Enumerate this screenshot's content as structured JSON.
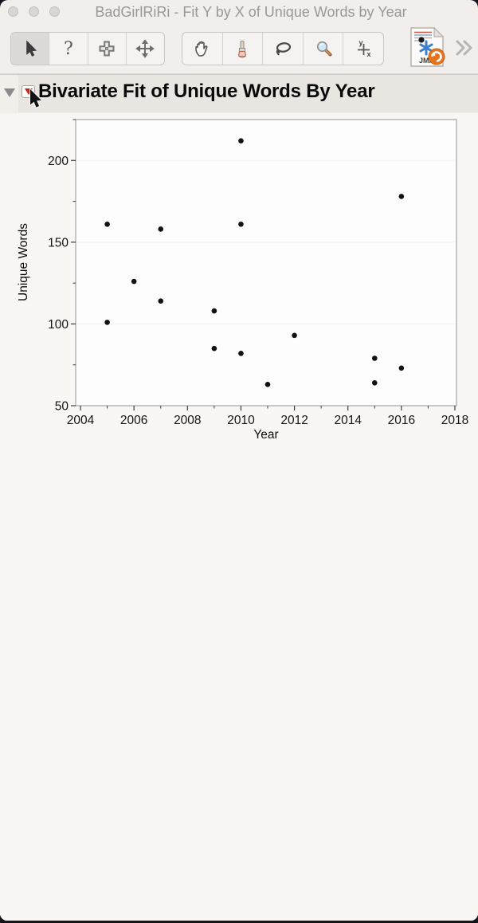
{
  "window": {
    "title": "BadGirlRiRi - Fit Y by X of Unique Words by Year"
  },
  "toolbar": {
    "group1": [
      {
        "icon": "pointer-icon",
        "selected": true
      },
      {
        "icon": "help-icon",
        "selected": false
      },
      {
        "icon": "brush-icon",
        "selected": false
      },
      {
        "icon": "move-icon",
        "selected": false
      }
    ],
    "group2": [
      {
        "icon": "hand-icon",
        "selected": false
      },
      {
        "icon": "paintbrush-icon",
        "selected": false
      },
      {
        "icon": "lasso-icon",
        "selected": false
      },
      {
        "icon": "magnifier-icon",
        "selected": false
      },
      {
        "icon": "crosshair-xy-icon",
        "selected": false
      }
    ],
    "help_glyph": "?",
    "jmp_icon_label": "JMP",
    "overflow_icon": "chevron-double-right"
  },
  "outline": {
    "disclosure_icon": "triangle-down",
    "menu_icon": "red-triangle-down",
    "title": "Bivariate Fit of Unique Words By Year"
  },
  "colors": {
    "red_triangle": "#c1251c",
    "jmp_orange": "#e8731f",
    "jmp_blue": "#3a7fd0",
    "point_color": "#111111"
  },
  "chart_data": {
    "type": "scatter",
    "title": "Bivariate Fit of Unique Words By Year",
    "xlabel": "Year",
    "ylabel": "Unique Words",
    "xlim": [
      2003.82,
      2018.06
    ],
    "ylim": [
      50,
      225
    ],
    "x_ticks_major": [
      2004,
      2006,
      2008,
      2010,
      2012,
      2014,
      2016,
      2018
    ],
    "x_ticks_minor": [
      2005,
      2007,
      2009,
      2011,
      2013,
      2015,
      2017
    ],
    "y_ticks_major": [
      50,
      100,
      150,
      200
    ],
    "y_ticks_minor": [
      75,
      125,
      175,
      225
    ],
    "grid": false,
    "legend": "none",
    "point_color": "#111111",
    "points": [
      [
        2005,
        161
      ],
      [
        2005,
        101
      ],
      [
        2006,
        126
      ],
      [
        2007,
        158
      ],
      [
        2007,
        114
      ],
      [
        2009,
        108
      ],
      [
        2009,
        85
      ],
      [
        2010,
        212
      ],
      [
        2010,
        161
      ],
      [
        2010,
        82
      ],
      [
        2011,
        63
      ],
      [
        2012,
        93
      ],
      [
        2015,
        79
      ],
      [
        2015,
        64
      ],
      [
        2016,
        178
      ],
      [
        2016,
        73
      ]
    ]
  }
}
